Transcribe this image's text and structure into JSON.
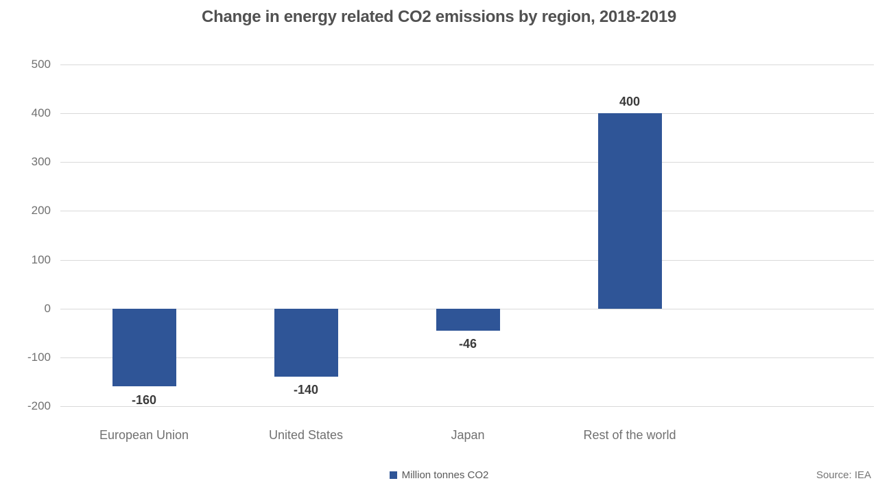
{
  "title": "Change in energy related CO2 emissions by region, 2018-2019",
  "legend": {
    "label": "Million tonnes CO2"
  },
  "source_note": "Source: IEA",
  "colors": {
    "bar": "#2F5597",
    "gridline": "#d9d9d9",
    "title_text": "#515151",
    "axis_text": "#707070",
    "data_label_text": "#3b3b3b",
    "legend_text": "#595959",
    "source_text": "#757575"
  },
  "chart_data": {
    "type": "bar",
    "title": "Change in energy related CO2 emissions by region, 2018-2019",
    "categories": [
      "European Union",
      "United States",
      "Japan",
      "Rest of the world"
    ],
    "values": [
      -160,
      -140,
      -46,
      400
    ],
    "data_labels": [
      "-160",
      "-140",
      "-46",
      "400"
    ],
    "series_name": "Million tonnes CO2",
    "xlabel": "",
    "ylabel": "",
    "ylim": [
      -200,
      500
    ],
    "yticks": [
      500,
      400,
      300,
      200,
      100,
      0,
      -100,
      -200
    ],
    "grid": true,
    "legend": [
      "Million tonnes CO2"
    ],
    "legend_position": "bottom",
    "annotations": [
      "Source: IEA"
    ]
  }
}
